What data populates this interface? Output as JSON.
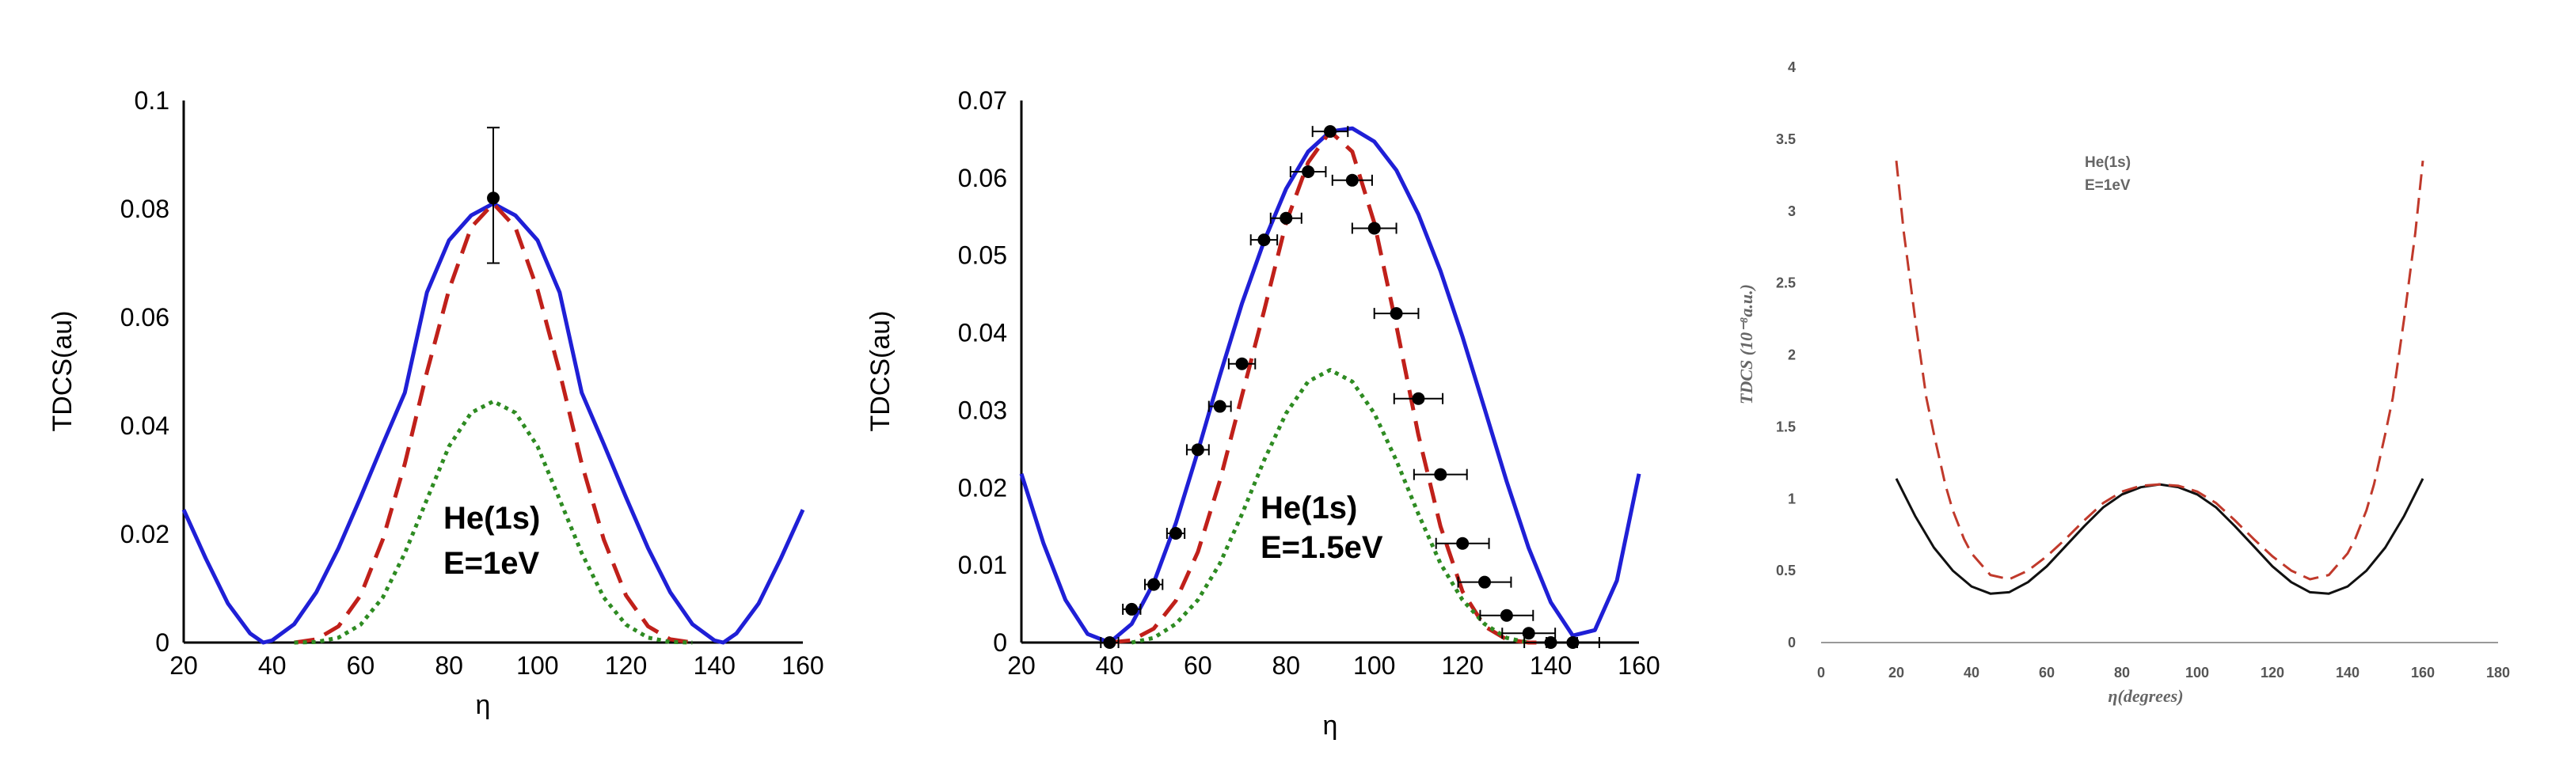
{
  "chart_data": [
    {
      "type": "line",
      "ylabel": "TDCS(au)",
      "xlabel": "η",
      "annotation": [
        "He(1s)",
        "E=1eV"
      ],
      "xlim": [
        20,
        160
      ],
      "ylim": [
        0,
        0.1
      ],
      "x_ticks": [
        "20",
        "40",
        "60",
        "80",
        "100",
        "120",
        "140",
        "160"
      ],
      "y_ticks": [
        "0",
        "0.02",
        "0.04",
        "0.06",
        "0.08",
        "0.1"
      ],
      "series": [
        {
          "style": "solid",
          "color": "#1f1fd6",
          "x": [
            20,
            25,
            30,
            35,
            38,
            40,
            45,
            50,
            55,
            60,
            65,
            70,
            75,
            80,
            85,
            90,
            95,
            100,
            105,
            110,
            115,
            120,
            125,
            130,
            135,
            140,
            142,
            145,
            150,
            155,
            160
          ],
          "values": [
            0.0245,
            0.0155,
            0.0072,
            0.0017,
            0.0,
            0.0004,
            0.0034,
            0.0093,
            0.0174,
            0.0268,
            0.0366,
            0.0461,
            0.0646,
            0.0742,
            0.0788,
            0.081,
            0.0788,
            0.0742,
            0.0646,
            0.0461,
            0.0366,
            0.0268,
            0.0174,
            0.0093,
            0.0034,
            0.0004,
            0.0,
            0.0017,
            0.0072,
            0.0155,
            0.0245
          ]
        },
        {
          "style": "dashed",
          "color": "#c0201a",
          "x": [
            45,
            50,
            55,
            60,
            65,
            70,
            75,
            80,
            85,
            90,
            95,
            100,
            105,
            110,
            115,
            120,
            125,
            130,
            135
          ],
          "values": [
            0.0,
            0.0006,
            0.003,
            0.0087,
            0.019,
            0.033,
            0.0499,
            0.0651,
            0.0766,
            0.081,
            0.0766,
            0.0651,
            0.0499,
            0.033,
            0.019,
            0.0087,
            0.003,
            0.0006,
            0.0
          ]
        },
        {
          "style": "dotted",
          "color": "#2e8b22",
          "x": [
            45,
            50,
            55,
            60,
            65,
            70,
            75,
            80,
            85,
            90,
            95,
            100,
            105,
            110,
            115,
            120,
            125,
            130,
            135
          ],
          "values": [
            0.0,
            0.0001,
            0.0009,
            0.0033,
            0.0083,
            0.0165,
            0.0264,
            0.0362,
            0.0424,
            0.0445,
            0.0424,
            0.0362,
            0.0264,
            0.0165,
            0.0083,
            0.0033,
            0.0009,
            0.0001,
            0.0
          ]
        }
      ],
      "points": [
        {
          "x": 90,
          "y": 0.082,
          "err_low": 0.07,
          "err_high": 0.095
        }
      ]
    },
    {
      "type": "line",
      "ylabel": "TDCS(au)",
      "xlabel": "η",
      "annotation": [
        "He(1s)",
        "E=1.5eV"
      ],
      "xlim": [
        20,
        160
      ],
      "ylim": [
        0,
        0.07
      ],
      "x_ticks": [
        "20",
        "40",
        "60",
        "80",
        "100",
        "120",
        "140",
        "160"
      ],
      "y_ticks": [
        "0",
        "0.01",
        "0.02",
        "0.03",
        "0.04",
        "0.05",
        "0.06",
        "0.07"
      ],
      "series": [
        {
          "style": "solid",
          "color": "#1f1fd6",
          "x": [
            20,
            25,
            30,
            35,
            40,
            45,
            50,
            55,
            60,
            65,
            70,
            75,
            80,
            85,
            90,
            95,
            100,
            105,
            110,
            115,
            120,
            125,
            130,
            135,
            140,
            145,
            150,
            155,
            160
          ],
          "values": [
            0.0218,
            0.0128,
            0.0055,
            0.0011,
            0.0,
            0.0024,
            0.0077,
            0.0154,
            0.0247,
            0.0345,
            0.0438,
            0.0518,
            0.0586,
            0.0634,
            0.066,
            0.0664,
            0.0647,
            0.061,
            0.0553,
            0.048,
            0.0395,
            0.0302,
            0.0208,
            0.0122,
            0.0052,
            0.0009,
            0.0016,
            0.008,
            0.0218
          ]
        },
        {
          "style": "dashed",
          "color": "#c0201a",
          "x": [
            40,
            45,
            50,
            55,
            60,
            65,
            70,
            75,
            80,
            85,
            90,
            95,
            100,
            105,
            110,
            115,
            120,
            125,
            130,
            135,
            140
          ],
          "values": [
            0.0,
            0.0003,
            0.0018,
            0.0054,
            0.0117,
            0.0209,
            0.0319,
            0.0428,
            0.0542,
            0.062,
            0.066,
            0.0634,
            0.0542,
            0.0409,
            0.0268,
            0.015,
            0.0066,
            0.0021,
            0.0004,
            0.0,
            0.0
          ]
        },
        {
          "style": "dotted",
          "color": "#2e8b22",
          "x": [
            45,
            50,
            55,
            60,
            65,
            70,
            75,
            80,
            85,
            90,
            95,
            100,
            105,
            110,
            115,
            120,
            125,
            130,
            135
          ],
          "values": [
            0.0,
            0.0006,
            0.0024,
            0.0055,
            0.0102,
            0.0166,
            0.0235,
            0.0296,
            0.0337,
            0.0352,
            0.0337,
            0.0296,
            0.0235,
            0.0166,
            0.0102,
            0.0055,
            0.0024,
            0.0006,
            0.0
          ]
        }
      ],
      "points": [
        {
          "x": 40,
          "y": 0.0,
          "xerr": 2
        },
        {
          "x": 45,
          "y": 0.0043,
          "xerr": 2
        },
        {
          "x": 50,
          "y": 0.0075,
          "xerr": 2
        },
        {
          "x": 55,
          "y": 0.0141,
          "xerr": 2
        },
        {
          "x": 60,
          "y": 0.0249,
          "xerr": 2.5
        },
        {
          "x": 65,
          "y": 0.0305,
          "xerr": 2.5
        },
        {
          "x": 70,
          "y": 0.036,
          "xerr": 3
        },
        {
          "x": 75,
          "y": 0.052,
          "xerr": 3
        },
        {
          "x": 80,
          "y": 0.0548,
          "xerr": 3.5
        },
        {
          "x": 85,
          "y": 0.0608,
          "xerr": 4
        },
        {
          "x": 90,
          "y": 0.066,
          "xerr": 4
        },
        {
          "x": 95,
          "y": 0.0597,
          "xerr": 4.5
        },
        {
          "x": 100,
          "y": 0.0535,
          "xerr": 5
        },
        {
          "x": 105,
          "y": 0.0425,
          "xerr": 5
        },
        {
          "x": 110,
          "y": 0.0315,
          "xerr": 5.5
        },
        {
          "x": 115,
          "y": 0.0217,
          "xerr": 6
        },
        {
          "x": 120,
          "y": 0.0128,
          "xerr": 6
        },
        {
          "x": 125,
          "y": 0.0078,
          "xerr": 6
        },
        {
          "x": 130,
          "y": 0.0035,
          "xerr": 6
        },
        {
          "x": 135,
          "y": 0.0012,
          "xerr": 6
        },
        {
          "x": 140,
          "y": 0.0,
          "xerr": 6
        },
        {
          "x": 145,
          "y": 0.0,
          "xerr": 6
        }
      ]
    },
    {
      "type": "line",
      "ylabel": "TDCS (10⁻⁸a.u.)",
      "xlabel": "η(degrees)",
      "annotation": [
        "He(1s)",
        "E=1eV"
      ],
      "xlim": [
        0,
        180
      ],
      "ylim": [
        0,
        4
      ],
      "x_ticks": [
        "0",
        "20",
        "40",
        "60",
        "80",
        "100",
        "120",
        "140",
        "160",
        "180"
      ],
      "y_ticks": [
        "0",
        "0.5",
        "1",
        "1.5",
        "2",
        "2.5",
        "3",
        "3.5",
        "4"
      ],
      "series": [
        {
          "style": "solid",
          "color": "#111111",
          "x": [
            20,
            25,
            30,
            35,
            40,
            45,
            50,
            55,
            60,
            65,
            70,
            75,
            80,
            85,
            90,
            95,
            100,
            105,
            110,
            115,
            120,
            125,
            130,
            135,
            140,
            145,
            150,
            155,
            160
          ],
          "values": [
            1.14,
            0.88,
            0.66,
            0.5,
            0.39,
            0.34,
            0.35,
            0.42,
            0.53,
            0.67,
            0.81,
            0.94,
            1.03,
            1.08,
            1.1,
            1.08,
            1.03,
            0.94,
            0.81,
            0.67,
            0.53,
            0.42,
            0.35,
            0.34,
            0.39,
            0.5,
            0.66,
            0.88,
            1.14
          ]
        },
        {
          "style": "dashed",
          "color": "#c0392b",
          "x": [
            20,
            22,
            25,
            28,
            30,
            33,
            35,
            38,
            40,
            45,
            50,
            55,
            60,
            65,
            70,
            75,
            80,
            85,
            90,
            95,
            100,
            105,
            110,
            115,
            120,
            125,
            130,
            135,
            140,
            142,
            145,
            147,
            150,
            152,
            155,
            158,
            160
          ],
          "values": [
            3.35,
            2.85,
            2.25,
            1.7,
            1.45,
            1.1,
            0.92,
            0.72,
            0.62,
            0.47,
            0.44,
            0.5,
            0.6,
            0.72,
            0.85,
            0.97,
            1.05,
            1.09,
            1.1,
            1.09,
            1.05,
            0.97,
            0.85,
            0.72,
            0.6,
            0.5,
            0.44,
            0.47,
            0.62,
            0.72,
            0.92,
            1.1,
            1.45,
            1.7,
            2.25,
            2.85,
            3.35
          ]
        }
      ]
    }
  ]
}
